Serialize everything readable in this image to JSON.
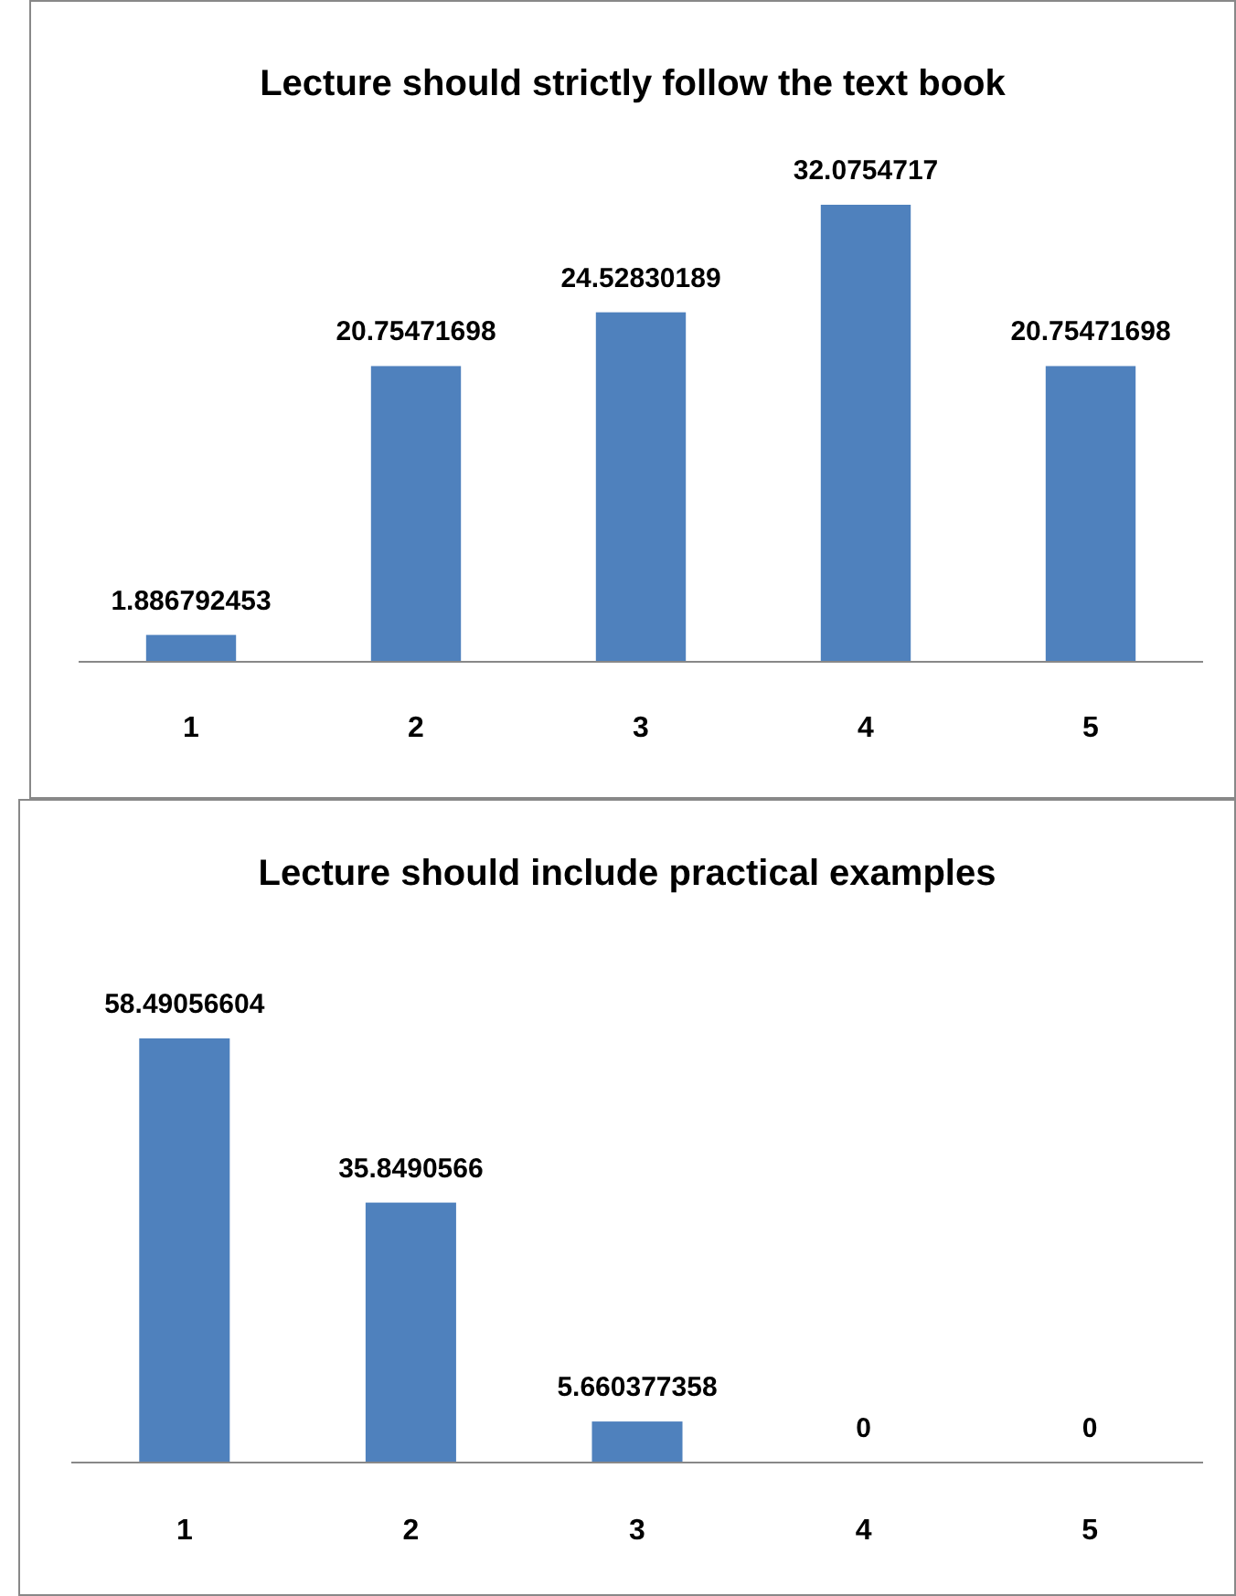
{
  "chart_data": [
    {
      "type": "bar",
      "title": "Lecture should strictly follow the text book",
      "categories": [
        "1",
        "2",
        "3",
        "4",
        "5"
      ],
      "values": [
        1.886792453,
        20.75471698,
        24.52830189,
        32.0754717,
        20.75471698
      ],
      "color": "#4f81bd",
      "data_labels": true
    },
    {
      "type": "bar",
      "title": "Lecture should include practical examples",
      "categories": [
        "1",
        "2",
        "3",
        "4",
        "5"
      ],
      "values": [
        58.49056604,
        35.8490566,
        5.660377358,
        0,
        0
      ],
      "color": "#4f81bd",
      "data_labels": true
    }
  ]
}
